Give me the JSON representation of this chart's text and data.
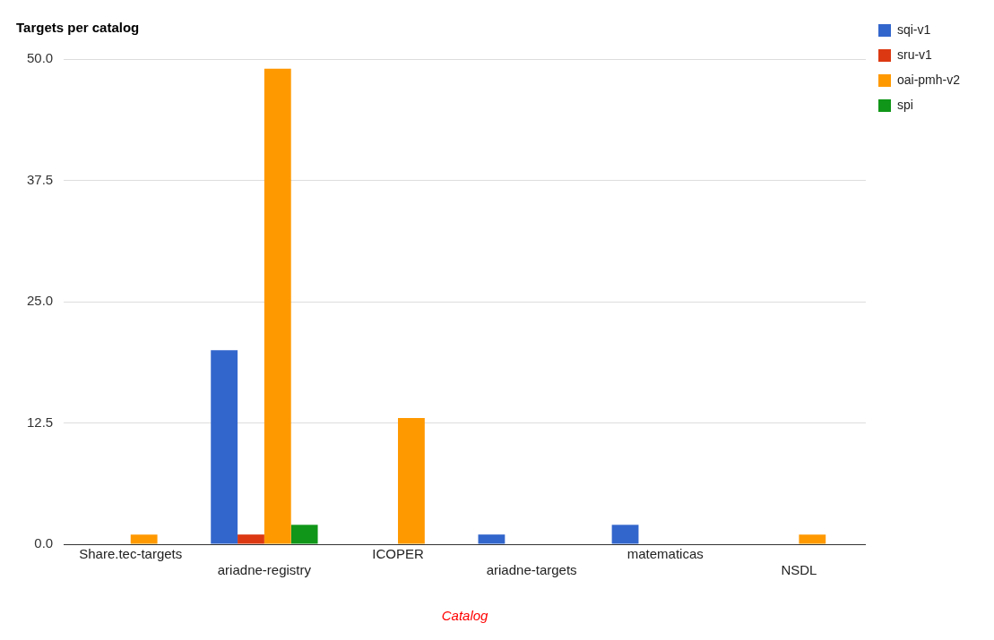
{
  "chart_data": {
    "type": "bar",
    "title": "Targets per catalog",
    "xlabel": "Catalog",
    "categories": [
      "Share.tec-targets",
      "ariadne-registry",
      "ICOPER",
      "ariadne-targets",
      "matematicas",
      "NSDL"
    ],
    "series": [
      {
        "name": "sqi-v1",
        "color": "#3366cc",
        "values": [
          0,
          20,
          0,
          1,
          2,
          0
        ]
      },
      {
        "name": "sru-v1",
        "color": "#dc3912",
        "values": [
          0,
          1,
          0,
          0,
          0,
          0
        ]
      },
      {
        "name": "oai-pmh-v2",
        "color": "#ff9900",
        "values": [
          1,
          49,
          13,
          0,
          0,
          1
        ]
      },
      {
        "name": "spi",
        "color": "#109618",
        "values": [
          0,
          2,
          0,
          0,
          0,
          0
        ]
      }
    ],
    "ylim": [
      0,
      50
    ],
    "yticks": [
      {
        "value": 0,
        "label": "0.0"
      },
      12.5,
      {
        "value": 25,
        "label": "25.0"
      },
      37.5,
      {
        "value": 50,
        "label": "50.0"
      }
    ],
    "grid": "y",
    "legend": "top right"
  }
}
